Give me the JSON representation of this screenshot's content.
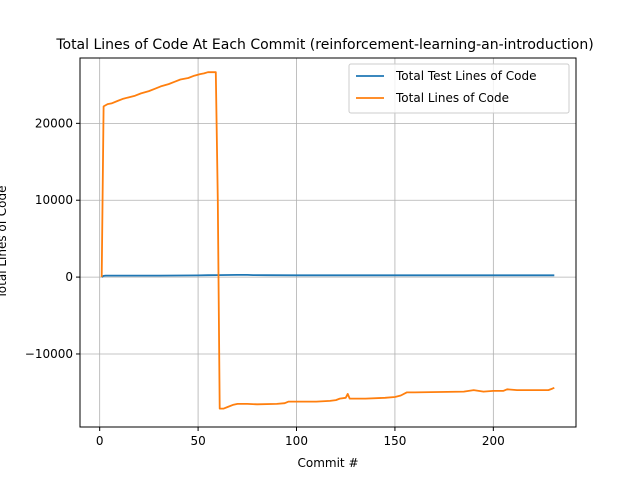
{
  "chart_data": {
    "type": "line",
    "title": "Total Lines of Code At Each Commit (reinforcement-learning-an-introduction)",
    "xlabel": "Commit #",
    "ylabel": "Total Lines of Code",
    "xlim": [
      -10,
      242
    ],
    "ylim": [
      -19500,
      28500
    ],
    "xticks": [
      0,
      50,
      100,
      150,
      200
    ],
    "yticks": [
      -10000,
      0,
      10000,
      20000
    ],
    "xtick_labels": [
      "0",
      "50",
      "100",
      "150",
      "200"
    ],
    "ytick_labels": [
      "−10000",
      "0",
      "10000",
      "20000"
    ],
    "grid": true,
    "legend_position": "upper-right",
    "series": [
      {
        "name": "Total Test Lines of Code",
        "color": "#1f77b4",
        "points": [
          [
            1,
            0
          ],
          [
            2,
            150
          ],
          [
            3,
            200
          ],
          [
            10,
            200
          ],
          [
            30,
            200
          ],
          [
            50,
            220
          ],
          [
            55,
            240
          ],
          [
            60,
            260
          ],
          [
            65,
            270
          ],
          [
            70,
            280
          ],
          [
            75,
            290
          ],
          [
            78,
            260
          ],
          [
            85,
            240
          ],
          [
            100,
            230
          ],
          [
            150,
            230
          ],
          [
            200,
            230
          ],
          [
            231,
            230
          ]
        ]
      },
      {
        "name": "Total Lines of Code",
        "color": "#ff7f0e",
        "points": [
          [
            1,
            0
          ],
          [
            2,
            22200
          ],
          [
            4,
            22500
          ],
          [
            6,
            22600
          ],
          [
            9,
            22900
          ],
          [
            12,
            23200
          ],
          [
            15,
            23400
          ],
          [
            18,
            23600
          ],
          [
            21,
            23900
          ],
          [
            25,
            24200
          ],
          [
            28,
            24500
          ],
          [
            31,
            24800
          ],
          [
            35,
            25100
          ],
          [
            38,
            25400
          ],
          [
            41,
            25700
          ],
          [
            45,
            25900
          ],
          [
            48,
            26200
          ],
          [
            51,
            26400
          ],
          [
            53,
            26500
          ],
          [
            55,
            26650
          ],
          [
            59,
            26650
          ],
          [
            60,
            10000
          ],
          [
            61,
            -17100
          ],
          [
            63,
            -17100
          ],
          [
            65,
            -16900
          ],
          [
            68,
            -16600
          ],
          [
            70,
            -16500
          ],
          [
            75,
            -16500
          ],
          [
            80,
            -16550
          ],
          [
            90,
            -16500
          ],
          [
            94,
            -16400
          ],
          [
            96,
            -16200
          ],
          [
            110,
            -16200
          ],
          [
            117,
            -16100
          ],
          [
            120,
            -16000
          ],
          [
            122,
            -15800
          ],
          [
            125,
            -15700
          ],
          [
            126,
            -15200
          ],
          [
            127,
            -15800
          ],
          [
            135,
            -15800
          ],
          [
            145,
            -15700
          ],
          [
            150,
            -15600
          ],
          [
            153,
            -15400
          ],
          [
            156,
            -15000
          ],
          [
            160,
            -15000
          ],
          [
            185,
            -14900
          ],
          [
            190,
            -14700
          ],
          [
            195,
            -14900
          ],
          [
            200,
            -14800
          ],
          [
            205,
            -14800
          ],
          [
            207,
            -14600
          ],
          [
            212,
            -14700
          ],
          [
            220,
            -14700
          ],
          [
            228,
            -14700
          ],
          [
            230,
            -14500
          ],
          [
            231,
            -14400
          ]
        ]
      }
    ]
  }
}
